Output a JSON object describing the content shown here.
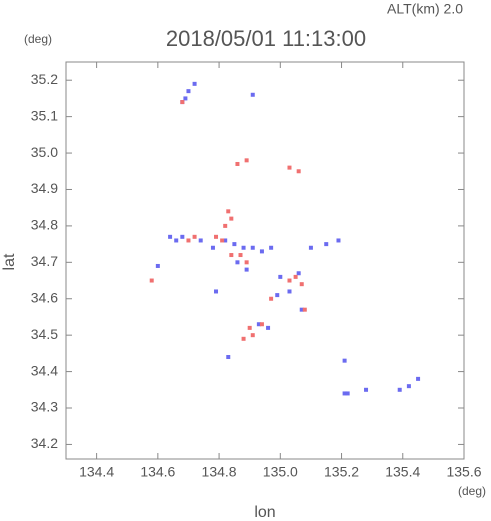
{
  "chart_data": {
    "type": "scatter",
    "title": "2018/05/01 11:13:00",
    "subtitle": "ALT(km) 2.0",
    "y_unit": "(deg)",
    "x_unit": "(deg)",
    "xlabel": "lon",
    "ylabel": "lat",
    "xlim": [
      134.3,
      135.6
    ],
    "ylim": [
      34.16,
      35.25
    ],
    "xticks": [
      134.4,
      134.6,
      134.8,
      {
        "value": 135,
        "label": "135.0"
      },
      135.2,
      135.4,
      135.6
    ],
    "yticks": [
      {
        "value": 34.2,
        "label": "34.2"
      },
      34.3,
      34.4,
      34.5,
      34.6,
      34.7,
      34.8,
      34.9,
      {
        "value": 35,
        "label": "35.0"
      },
      35.1,
      35.2
    ],
    "grid": false,
    "series": [
      {
        "color": "#6b6bf0",
        "x": [
          134.69,
          134.7,
          134.72,
          134.68,
          134.91,
          134.64,
          134.66,
          134.68,
          134.74,
          134.78,
          134.82,
          134.85,
          134.88,
          134.91,
          134.94,
          134.97,
          134.86,
          134.89,
          135.0,
          135.03,
          134.99,
          135.06,
          135.1,
          135.15,
          135.19,
          134.93,
          134.96,
          134.83,
          135.21,
          135.22,
          135.28,
          135.39,
          135.42,
          135.45,
          134.79,
          135.07,
          135.21,
          134.6
        ],
        "y": [
          35.15,
          35.17,
          35.19,
          35.14,
          35.16,
          34.77,
          34.76,
          34.77,
          34.76,
          34.74,
          34.76,
          34.75,
          34.74,
          34.74,
          34.73,
          34.74,
          34.7,
          34.68,
          34.66,
          34.62,
          34.61,
          34.67,
          34.74,
          34.75,
          34.76,
          34.53,
          34.52,
          34.44,
          34.34,
          34.34,
          34.35,
          34.35,
          34.36,
          34.38,
          34.62,
          34.57,
          34.43,
          34.69
        ]
      },
      {
        "color": "#f07070",
        "x": [
          134.68,
          134.83,
          134.84,
          134.82,
          134.7,
          134.72,
          134.79,
          134.81,
          134.84,
          134.87,
          134.89,
          135.05,
          135.07,
          135.03,
          134.91,
          134.88,
          134.9,
          134.94,
          134.89,
          134.86,
          135.03,
          135.06,
          134.58,
          135.08,
          134.97
        ],
        "y": [
          35.14,
          34.84,
          34.82,
          34.8,
          34.76,
          34.77,
          34.77,
          34.76,
          34.72,
          34.72,
          34.7,
          34.66,
          34.64,
          34.65,
          34.5,
          34.49,
          34.52,
          34.53,
          34.98,
          34.97,
          34.96,
          34.95,
          34.65,
          34.57,
          34.6
        ]
      }
    ]
  }
}
